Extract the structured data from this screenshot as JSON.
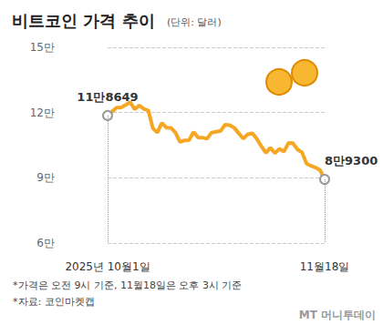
{
  "chart_data": {
    "type": "line",
    "title": "비트코인 가격 추이",
    "subtitle": "(단위: 달러)",
    "categories": [
      "2025년 10월1일",
      null,
      null,
      null,
      null,
      null,
      null,
      null,
      null,
      null,
      null,
      null,
      null,
      null,
      null,
      null,
      null,
      null,
      null,
      null,
      null,
      null,
      null,
      null,
      null,
      null,
      null,
      null,
      null,
      null,
      null,
      null,
      null,
      null,
      null,
      null,
      null,
      null,
      null,
      null,
      null,
      null,
      null,
      null,
      null,
      null,
      null,
      null,
      "11월18일"
    ],
    "values": [
      118649,
      120500,
      122300,
      122400,
      123500,
      124800,
      121500,
      123300,
      121700,
      121000,
      112800,
      110800,
      115200,
      113100,
      113000,
      110800,
      106500,
      107200,
      107300,
      111000,
      108600,
      108500,
      108000,
      110800,
      111200,
      111600,
      114400,
      114200,
      113000,
      110500,
      108000,
      110000,
      110500,
      107900,
      104500,
      101500,
      103800,
      101300,
      103400,
      102000,
      106000,
      105900,
      103000,
      101700,
      96500,
      95500,
      94700,
      93500,
      89300
    ],
    "color": "#f5a623",
    "ylim": [
      60000,
      150000
    ],
    "yticks": [
      {
        "value": 60000,
        "label": "6만"
      },
      {
        "value": 90000,
        "label": "9만"
      },
      {
        "value": 120000,
        "label": "12만"
      },
      {
        "value": 150000,
        "label": "15만"
      }
    ],
    "grid": true,
    "annotations": [
      {
        "x": "2025년 10월1일",
        "y": 118649,
        "text": "11만8649"
      },
      {
        "x": "11월18일",
        "y": 89300,
        "text": "8만9300"
      }
    ],
    "notes": [
      "*가격은 오전 9시 기준, 11월18일은 오후 3시 기준",
      "*자료: 코인마켓캡"
    ],
    "source_logo": "MT 머니투데이"
  }
}
